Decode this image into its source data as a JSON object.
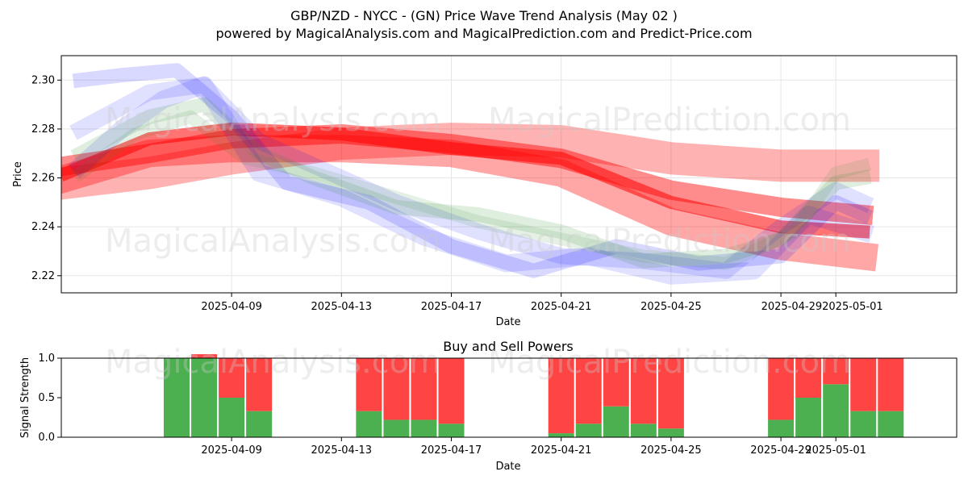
{
  "title_line1": "GBP/NZD - NYCC -  (GN) Price Wave Trend Analysis (May 02 )",
  "title_line2": "powered by MagicalAnalysis.com and MagicalPrediction.com and Predict-Price.com",
  "watermarks": [
    "MagicalAnalysis.com",
    "MagicalPrediction.com"
  ],
  "colors": {
    "red": "#ff0000",
    "blue": "#0000ff",
    "green": "#2e8b2e",
    "buy": "#4caf50",
    "sell": "#ff4444"
  },
  "chart_data": [
    {
      "type": "line",
      "title": "",
      "xlabel": "Date",
      "ylabel": "Price",
      "ylim": [
        2.213,
        2.31
      ],
      "x_range_days": [
        -3.2,
        29.4
      ],
      "x_origin": "2025-04-06",
      "yticks": [
        2.22,
        2.24,
        2.26,
        2.28,
        2.3
      ],
      "ytick_labels": [
        "2.22",
        "2.24",
        "2.26",
        "2.28",
        "2.30"
      ],
      "xticks": [
        3,
        7,
        11,
        15,
        19,
        23,
        25
      ],
      "xtick_labels": [
        "2025-04-09",
        "2025-04-13",
        "2025-04-17",
        "2025-04-21",
        "2025-04-25",
        "2025-04-292025-05-01"
      ],
      "xtick_label_days": [
        3,
        7,
        11,
        15,
        19,
        24.5
      ],
      "series": [
        {
          "name": "red band 1",
          "color": "red",
          "opacity": 0.3,
          "width": 40,
          "x": [
            -3,
            0,
            3,
            7,
            11,
            15,
            19,
            23,
            26
          ],
          "values": [
            2.258,
            2.262,
            2.268,
            2.274,
            2.276,
            2.275,
            2.268,
            2.265,
            2.265
          ]
        },
        {
          "name": "red band 2",
          "color": "red",
          "opacity": 0.45,
          "width": 24,
          "x": [
            -3,
            0,
            3,
            7,
            11,
            15,
            19,
            23,
            26
          ],
          "values": [
            2.265,
            2.27,
            2.276,
            2.278,
            2.274,
            2.268,
            2.255,
            2.248,
            2.245
          ]
        },
        {
          "name": "red band 3",
          "color": "red",
          "opacity": 0.55,
          "width": 16,
          "x": [
            -3,
            0,
            3,
            7,
            11,
            15,
            19,
            23,
            26
          ],
          "values": [
            2.262,
            2.276,
            2.28,
            2.278,
            2.272,
            2.268,
            2.25,
            2.24,
            2.238
          ]
        },
        {
          "name": "red band 4",
          "color": "red",
          "opacity": 0.35,
          "width": 34,
          "x": [
            -3,
            0,
            3,
            7,
            11,
            15,
            19,
            23,
            26
          ],
          "values": [
            2.26,
            2.27,
            2.272,
            2.272,
            2.27,
            2.262,
            2.242,
            2.232,
            2.228
          ]
        },
        {
          "name": "blue band 1",
          "color": "blue",
          "opacity": 0.12,
          "width": 22,
          "x": [
            -2.5,
            -1,
            0.5,
            2,
            4,
            7,
            10,
            13,
            16,
            19,
            22,
            24,
            26
          ],
          "values": [
            2.265,
            2.28,
            2.292,
            2.298,
            2.262,
            2.252,
            2.236,
            2.225,
            2.228,
            2.22,
            2.222,
            2.245,
            2.238
          ]
        },
        {
          "name": "blue band 2",
          "color": "blue",
          "opacity": 0.15,
          "width": 18,
          "x": [
            -2.5,
            -1,
            1,
            3,
            5,
            8,
            11,
            14,
            17,
            20,
            23,
            25,
            26
          ],
          "values": [
            2.3,
            2.302,
            2.304,
            2.285,
            2.258,
            2.25,
            2.232,
            2.222,
            2.232,
            2.225,
            2.228,
            2.25,
            2.245
          ]
        },
        {
          "name": "blue band 3",
          "color": "blue",
          "opacity": 0.12,
          "width": 20,
          "x": [
            -2.5,
            0,
            2,
            4,
            6,
            9,
            12,
            15,
            18,
            21,
            23,
            25,
            26
          ],
          "values": [
            2.28,
            2.295,
            2.298,
            2.275,
            2.265,
            2.25,
            2.238,
            2.228,
            2.226,
            2.222,
            2.24,
            2.255,
            2.25
          ]
        },
        {
          "name": "green band 1",
          "color": "green",
          "opacity": 0.15,
          "width": 18,
          "x": [
            -2.5,
            0,
            2,
            4,
            6,
            9,
            12,
            15,
            18,
            21,
            23,
            25,
            26
          ],
          "values": [
            2.27,
            2.285,
            2.29,
            2.27,
            2.26,
            2.248,
            2.245,
            2.238,
            2.226,
            2.228,
            2.235,
            2.258,
            2.26
          ]
        },
        {
          "name": "green band 2",
          "color": "green",
          "opacity": 0.12,
          "width": 16,
          "x": [
            -2.5,
            -0.5,
            1.5,
            3.5,
            6,
            9,
            12,
            15,
            18,
            21,
            23.5,
            25,
            26
          ],
          "values": [
            2.262,
            2.278,
            2.285,
            2.268,
            2.262,
            2.252,
            2.242,
            2.235,
            2.228,
            2.225,
            2.238,
            2.262,
            2.265
          ]
        }
      ]
    },
    {
      "type": "bar",
      "title": "Buy and Sell Powers",
      "xlabel": "Date",
      "ylabel": "Signal Strength",
      "ylim": [
        0,
        1
      ],
      "yticks": [
        0,
        0.5,
        1.0
      ],
      "ytick_labels": [
        "0.0",
        "0.5",
        "1.0"
      ],
      "xtick_labels": [
        "2025-04-09",
        "2025-04-13",
        "2025-04-17",
        "2025-04-21",
        "2025-04-25",
        "2025-04-29",
        "2025-05-01"
      ],
      "xtick_days": [
        3,
        7,
        11,
        15,
        19,
        23,
        25
      ],
      "x_range_days": [
        -3.2,
        29.4
      ],
      "days": [
        1,
        2,
        3,
        4,
        8,
        9,
        10,
        11,
        15,
        16,
        17,
        18,
        19,
        23,
        24,
        25,
        26,
        27
      ],
      "buy": [
        1.0,
        1.0,
        0.5,
        0.33,
        0.33,
        0.22,
        0.22,
        0.17,
        0.05,
        0.17,
        0.39,
        0.17,
        0.11,
        0.22,
        0.5,
        0.67,
        0.33,
        0.33
      ],
      "sell": [
        0.0,
        0.05,
        0.5,
        0.67,
        0.67,
        0.78,
        0.78,
        0.83,
        0.95,
        0.83,
        0.61,
        0.83,
        0.89,
        0.78,
        0.5,
        0.33,
        0.67,
        0.67
      ]
    }
  ]
}
